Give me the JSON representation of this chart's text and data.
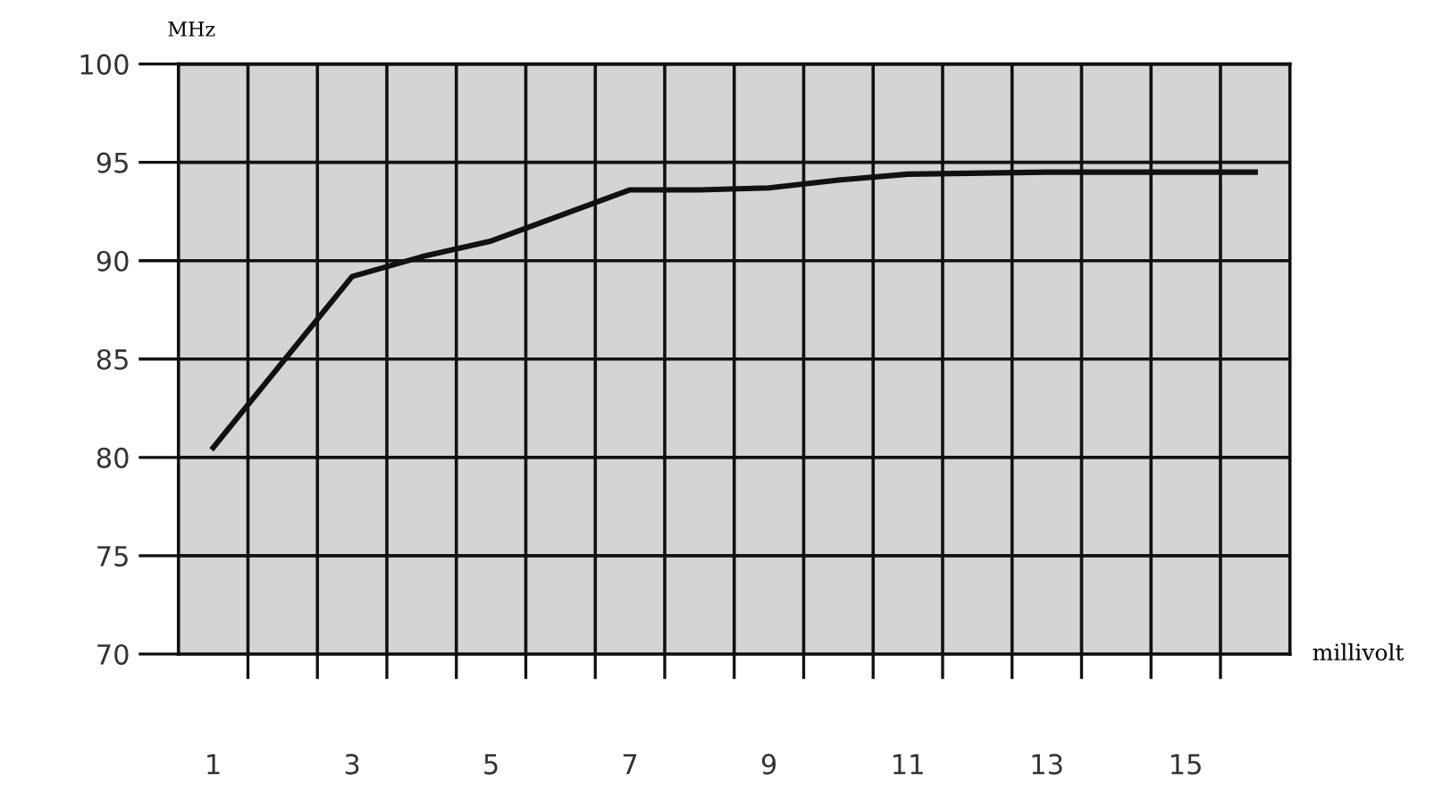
{
  "chart_data": {
    "type": "line",
    "xlabel": "millivolt",
    "ylabel": "MHz",
    "x": [
      1,
      3,
      4,
      5,
      7,
      8,
      9,
      10,
      11,
      13,
      16
    ],
    "series": [
      {
        "color": "#111111",
        "values": [
          80.5,
          89.2,
          90.2,
          91.0,
          93.6,
          93.6,
          93.7,
          94.1,
          94.4,
          94.5,
          94.5
        ]
      }
    ],
    "xlim": [
      0.5,
      16.5
    ],
    "xticks": [
      1,
      3,
      5,
      7,
      9,
      11,
      13,
      15,
      {
        "value": 1.5,
        "label": null
      },
      {
        "value": 2.5,
        "label": null
      },
      {
        "value": 3.5,
        "label": null
      },
      {
        "value": 4.5,
        "label": null
      },
      {
        "value": 5.5,
        "label": null
      },
      {
        "value": 6.5,
        "label": null
      },
      {
        "value": 7.5,
        "label": null
      },
      {
        "value": 8.5,
        "label": null
      },
      {
        "value": 9.5,
        "label": null
      },
      {
        "value": 10.5,
        "label": null
      },
      {
        "value": 11.5,
        "label": null
      },
      {
        "value": 12.5,
        "label": null
      },
      {
        "value": 13.5,
        "label": null
      },
      {
        "value": 14.5,
        "label": null
      },
      {
        "value": 15.5,
        "label": null
      }
    ],
    "ylim": [
      70,
      100
    ],
    "yticks": [
      70,
      75,
      80,
      85,
      90,
      95,
      100
    ],
    "grid": true,
    "marker": "none",
    "line_style": "solid"
  }
}
